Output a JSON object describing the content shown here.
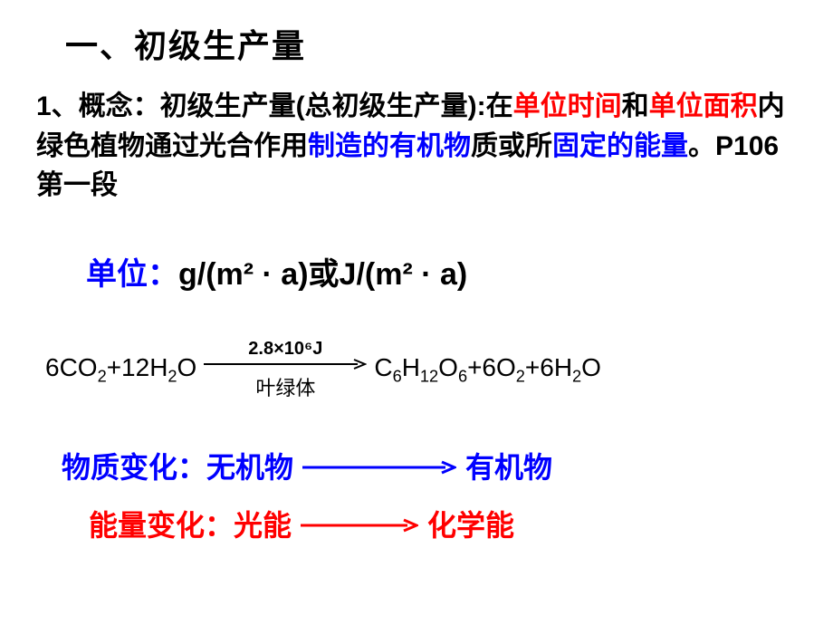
{
  "title": "一、初级生产量",
  "para1": {
    "t1": "1、概念：初级生产量(总初级生产量):在",
    "t2_red": "单位时间",
    "t3": "和",
    "t4_red": "单位面积",
    "t5": "内绿色植物通过光合作用",
    "t6_blue": "制造的有机物",
    "t7": "质或所",
    "t8_blue": "固定的能量",
    "t9": "。P106第一段"
  },
  "units": {
    "label": "单位：",
    "value": "g/(m² · a)或J/(m² · a)"
  },
  "equation": {
    "left_html": "6CO<sub>2</sub>+12H<sub>2</sub>O",
    "arrow_top": "2.8×10⁶J",
    "arrow_bottom": "叶绿体",
    "right_html": "C<sub>6</sub>H<sub>12</sub>O<sub>6</sub>+6O<sub>2</sub>+6H<sub>2</sub>O"
  },
  "matter": {
    "label": "物质变化：",
    "from": "无机物",
    "to": "有机物",
    "color": "#0000ff",
    "arrow_width": 170
  },
  "energy": {
    "label": "能量变化：",
    "from": "光能",
    "to": "化学能",
    "color": "#ff0000",
    "arrow_width": 130
  },
  "eq_arrow": {
    "width": 180,
    "color": "#000000"
  }
}
